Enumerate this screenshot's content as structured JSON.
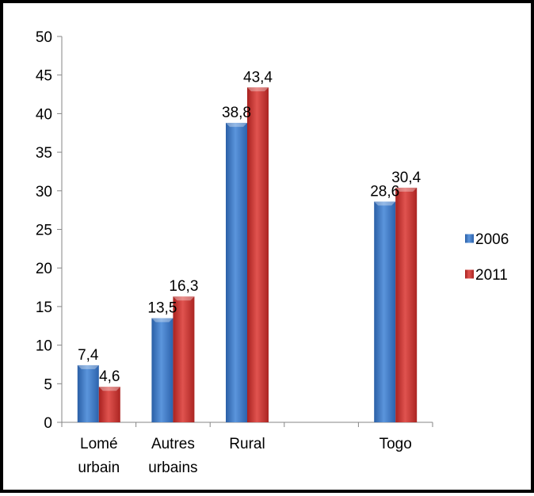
{
  "chart_data": {
    "type": "bar",
    "categories": [
      [
        "Lomé",
        "urbain"
      ],
      [
        "Autres",
        "urbains"
      ],
      [
        "Rural"
      ],
      [
        ""
      ],
      [
        "Togo"
      ]
    ],
    "series": [
      {
        "name": "2006",
        "values": [
          7.4,
          13.5,
          38.8,
          null,
          28.6
        ],
        "labels": [
          "7,4",
          "13,5",
          "38,8",
          "",
          "28,6"
        ],
        "color": "#3a78c4"
      },
      {
        "name": "2011",
        "values": [
          4.6,
          16.3,
          43.4,
          null,
          30.4
        ],
        "labels": [
          "4,6",
          "16,3",
          "43,4",
          "",
          "30,4"
        ],
        "color": "#c8312f"
      }
    ],
    "ylim": [
      0,
      50
    ],
    "yticks": [
      0,
      5,
      10,
      15,
      20,
      25,
      30,
      35,
      40,
      45,
      50
    ],
    "grid": false,
    "legend_position": "right"
  }
}
